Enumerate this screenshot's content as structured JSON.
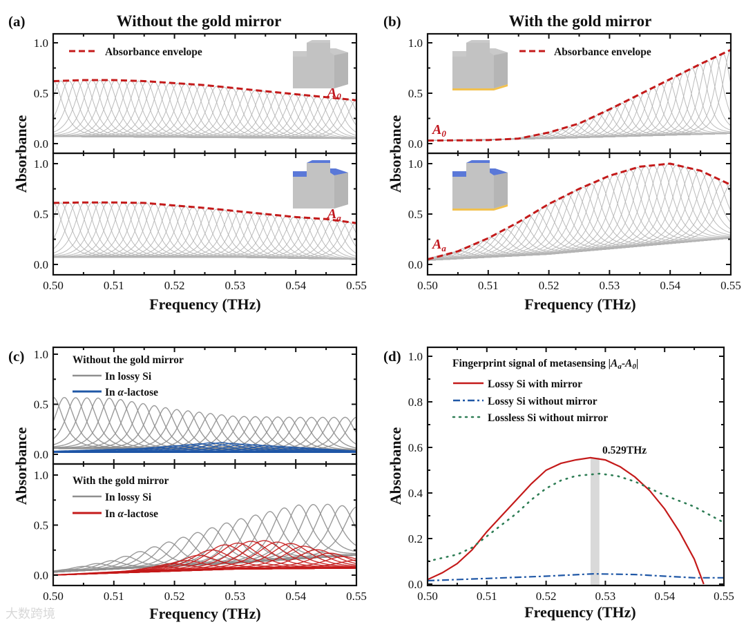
{
  "panels": {
    "a": {
      "label": "(a)",
      "title": "Without the gold mirror",
      "legend": "Absorbance envelope",
      "ylabel": "Absorbance",
      "xlabel": "Frequency (THz)",
      "tag_top": {
        "main": "A",
        "sub": "0"
      },
      "tag_bottom": {
        "main": "A",
        "sub": "a"
      }
    },
    "b": {
      "label": "(b)",
      "title": "With the gold mirror",
      "legend": "Absorbance envelope",
      "ylabel": "Absorbance",
      "xlabel": "Frequency (THz)",
      "tag_top": {
        "main": "A",
        "sub": "0"
      },
      "tag_bottom": {
        "main": "A",
        "sub": "a"
      }
    },
    "c": {
      "label": "(c)",
      "ylabel": "Absorbance",
      "xlabel": "Frequency (THz)",
      "top_heading": "Without the gold mirror",
      "top_legend": [
        "In lossy Si",
        {
          "pre": "In ",
          "greek": "α",
          "post": "-lactose"
        }
      ],
      "bottom_heading": "With the gold mirror",
      "bottom_legend": [
        "In lossy Si",
        {
          "pre": "In ",
          "greek": "α",
          "post": "-lactose"
        }
      ]
    },
    "d": {
      "label": "(d)",
      "ylabel": "Absorbance",
      "xlabel": "Frequency (THz)",
      "legend_title": {
        "pre": "Fingerprint signal of metasensing |",
        "a": "A",
        "a_sub": "a",
        "dash": "-",
        "b": "A",
        "b_sub": "0",
        "post": "|"
      },
      "annotation": "0.529THz"
    }
  },
  "watermark": "大数跨境",
  "colors": {
    "gray": "#b4b4b4",
    "gray_dark": "#8f8f8f",
    "red": "#c41a1a",
    "blue": "#1f57a6",
    "green": "#2e7d55",
    "mirror": "#f2c14e",
    "analyte": "#5a78d8"
  },
  "chart_data": [
    {
      "id": "a_top",
      "type": "line",
      "xlim": [
        0.5,
        0.55
      ],
      "ylim": [
        -0.1,
        1.08
      ],
      "x_ticks": [
        "0.50",
        "0.51",
        "0.52",
        "0.53",
        "0.54",
        "0.55"
      ],
      "y_ticks": [
        "0.0",
        "0.5",
        "1.0"
      ],
      "envelope": [
        [
          0.5,
          0.62
        ],
        [
          0.505,
          0.63
        ],
        [
          0.51,
          0.63
        ],
        [
          0.515,
          0.62
        ],
        [
          0.52,
          0.6
        ],
        [
          0.525,
          0.58
        ],
        [
          0.53,
          0.55
        ],
        [
          0.535,
          0.52
        ],
        [
          0.54,
          0.49
        ],
        [
          0.545,
          0.46
        ],
        [
          0.55,
          0.43
        ]
      ],
      "families": [
        {
          "color": "gray",
          "count": 40,
          "halfwidth": 0.0021,
          "baseline": [
            [
              0.5,
              0.07
            ],
            [
              0.55,
              0.05
            ]
          ],
          "peaks": "envelope"
        }
      ]
    },
    {
      "id": "a_bottom",
      "type": "line",
      "xlim": [
        0.5,
        0.55
      ],
      "ylim": [
        -0.1,
        1.08
      ],
      "x_ticks": [
        "0.50",
        "0.51",
        "0.52",
        "0.53",
        "0.54",
        "0.55"
      ],
      "y_ticks": [
        "0.0",
        "0.5",
        "1.0"
      ],
      "envelope": [
        [
          0.5,
          0.61
        ],
        [
          0.505,
          0.615
        ],
        [
          0.51,
          0.615
        ],
        [
          0.515,
          0.61
        ],
        [
          0.52,
          0.585
        ],
        [
          0.525,
          0.56
        ],
        [
          0.53,
          0.53
        ],
        [
          0.535,
          0.5
        ],
        [
          0.54,
          0.47
        ],
        [
          0.545,
          0.45
        ],
        [
          0.55,
          0.41
        ]
      ],
      "families": [
        {
          "color": "gray",
          "count": 40,
          "halfwidth": 0.0021,
          "baseline": [
            [
              0.5,
              0.07
            ],
            [
              0.53,
              0.07
            ],
            [
              0.55,
              0.05
            ]
          ],
          "peaks": "envelope"
        }
      ]
    },
    {
      "id": "b_top",
      "type": "line",
      "xlim": [
        0.5,
        0.55
      ],
      "ylim": [
        -0.1,
        1.08
      ],
      "x_ticks": [
        "0.50",
        "0.51",
        "0.52",
        "0.53",
        "0.54",
        "0.55"
      ],
      "y_ticks": [
        "0.0",
        "0.5",
        "1.0"
      ],
      "envelope": [
        [
          0.5,
          0.03
        ],
        [
          0.51,
          0.035
        ],
        [
          0.515,
          0.05
        ],
        [
          0.52,
          0.11
        ],
        [
          0.525,
          0.2
        ],
        [
          0.53,
          0.34
        ],
        [
          0.535,
          0.49
        ],
        [
          0.54,
          0.64
        ],
        [
          0.545,
          0.79
        ],
        [
          0.55,
          0.93
        ]
      ],
      "families": [
        {
          "color": "gray",
          "count": 40,
          "halfwidth": 0.0018,
          "baseline": [
            [
              0.5,
              0.03
            ],
            [
              0.52,
              0.05
            ],
            [
              0.55,
              0.1
            ]
          ],
          "peaks": "envelope"
        }
      ]
    },
    {
      "id": "b_bottom",
      "type": "line",
      "xlim": [
        0.5,
        0.55
      ],
      "ylim": [
        -0.1,
        1.08
      ],
      "x_ticks": [
        "0.50",
        "0.51",
        "0.52",
        "0.53",
        "0.54",
        "0.55"
      ],
      "y_ticks": [
        "0.0",
        "0.5",
        "1.0"
      ],
      "envelope": [
        [
          0.5,
          0.05
        ],
        [
          0.505,
          0.13
        ],
        [
          0.51,
          0.26
        ],
        [
          0.515,
          0.42
        ],
        [
          0.52,
          0.6
        ],
        [
          0.525,
          0.75
        ],
        [
          0.53,
          0.88
        ],
        [
          0.535,
          0.97
        ],
        [
          0.54,
          1.0
        ],
        [
          0.545,
          0.93
        ],
        [
          0.55,
          0.79
        ]
      ],
      "families": [
        {
          "color": "gray",
          "count": 40,
          "halfwidth": 0.0026,
          "baseline": [
            [
              0.5,
              0.04
            ],
            [
              0.52,
              0.1
            ],
            [
              0.55,
              0.26
            ]
          ],
          "peaks": "envelope"
        }
      ]
    },
    {
      "id": "c_top",
      "type": "line",
      "xlim": [
        0.5,
        0.55
      ],
      "ylim": [
        -0.1,
        1.08
      ],
      "x_ticks": [
        "0.50",
        "0.51",
        "0.52",
        "0.53",
        "0.54",
        "0.55"
      ],
      "y_ticks": [
        "0.0",
        "0.5",
        "1.0"
      ],
      "families": [
        {
          "color": "gray_dark",
          "count": 28,
          "halfwidth": 0.0022,
          "baseline": [
            [
              0.5,
              0.06
            ],
            [
              0.55,
              0.04
            ]
          ],
          "peaks": [
            [
              0.5,
              0.57
            ],
            [
              0.51,
              0.56
            ],
            [
              0.52,
              0.45
            ],
            [
              0.53,
              0.38
            ],
            [
              0.54,
              0.37
            ],
            [
              0.55,
              0.37
            ]
          ]
        },
        {
          "color": "blue",
          "count": 28,
          "halfwidth": 0.004,
          "baseline": [
            [
              0.5,
              0.02
            ],
            [
              0.55,
              0.02
            ]
          ],
          "peaks": [
            [
              0.5,
              0.03
            ],
            [
              0.515,
              0.06
            ],
            [
              0.527,
              0.12
            ],
            [
              0.54,
              0.07
            ],
            [
              0.55,
              0.03
            ]
          ]
        }
      ]
    },
    {
      "id": "c_bottom",
      "type": "line",
      "xlim": [
        0.5,
        0.55
      ],
      "ylim": [
        -0.1,
        1.08
      ],
      "x_ticks": [
        "0.50",
        "0.51",
        "0.52",
        "0.53",
        "0.54",
        "0.55"
      ],
      "y_ticks": [
        "0.0",
        "0.5",
        "1.0"
      ],
      "families": [
        {
          "color": "gray_dark",
          "count": 22,
          "halfwidth": 0.0028,
          "baseline": [
            [
              0.5,
              0.03
            ],
            [
              0.53,
              0.12
            ],
            [
              0.55,
              0.2
            ]
          ],
          "peaks": [
            [
              0.5,
              0.03
            ],
            [
              0.51,
              0.15
            ],
            [
              0.52,
              0.35
            ],
            [
              0.53,
              0.55
            ],
            [
              0.54,
              0.7
            ],
            [
              0.545,
              0.71
            ],
            [
              0.55,
              0.68
            ]
          ]
        },
        {
          "color": "red",
          "count": 24,
          "halfwidth": 0.0045,
          "baseline": [
            [
              0.5,
              0.0
            ],
            [
              0.53,
              0.06
            ],
            [
              0.55,
              0.07
            ]
          ],
          "peaks": [
            [
              0.5,
              0.0
            ],
            [
              0.515,
              0.05
            ],
            [
              0.522,
              0.15
            ],
            [
              0.528,
              0.3
            ],
            [
              0.534,
              0.35
            ],
            [
              0.54,
              0.31
            ],
            [
              0.545,
              0.23
            ],
            [
              0.55,
              0.15
            ]
          ]
        }
      ]
    },
    {
      "id": "d",
      "type": "line",
      "title": "Fingerprint signal of metasensing |Aa-A0|",
      "xlabel": "Frequency (THz)",
      "ylabel": "Absorbance",
      "xlim": [
        0.5,
        0.55
      ],
      "ylim": [
        0.0,
        1.04
      ],
      "x_ticks": [
        "0.50",
        "0.51",
        "0.52",
        "0.53",
        "0.54",
        "0.55"
      ],
      "y_ticks": [
        "0.0",
        "0.2",
        "0.4",
        "0.6",
        "0.8",
        "1.0"
      ],
      "highlight_band": [
        0.5275,
        0.529
      ],
      "series": [
        {
          "name": "Lossy Si with mirror",
          "color": "red",
          "style": "solid",
          "points": [
            [
              0.5,
              0.02
            ],
            [
              0.5025,
              0.05
            ],
            [
              0.505,
              0.09
            ],
            [
              0.5075,
              0.15
            ],
            [
              0.51,
              0.23
            ],
            [
              0.5125,
              0.3
            ],
            [
              0.515,
              0.37
            ],
            [
              0.5175,
              0.44
            ],
            [
              0.52,
              0.5
            ],
            [
              0.5225,
              0.53
            ],
            [
              0.525,
              0.545
            ],
            [
              0.5275,
              0.555
            ],
            [
              0.53,
              0.545
            ],
            [
              0.5325,
              0.515
            ],
            [
              0.535,
              0.47
            ],
            [
              0.5375,
              0.41
            ],
            [
              0.54,
              0.33
            ],
            [
              0.5425,
              0.23
            ],
            [
              0.545,
              0.11
            ],
            [
              0.5466,
              0.0
            ]
          ]
        },
        {
          "name": "Lossy Si without mirror",
          "color": "blue",
          "style": "dashdot",
          "points": [
            [
              0.5,
              0.015
            ],
            [
              0.51,
              0.025
            ],
            [
              0.52,
              0.035
            ],
            [
              0.528,
              0.045
            ],
            [
              0.535,
              0.042
            ],
            [
              0.54,
              0.035
            ],
            [
              0.545,
              0.028
            ],
            [
              0.55,
              0.028
            ]
          ]
        },
        {
          "name": "Lossless Si without mirror",
          "color": "green",
          "style": "dotted",
          "points": [
            [
              0.5,
              0.1
            ],
            [
              0.505,
              0.13
            ],
            [
              0.5075,
              0.16
            ],
            [
              0.51,
              0.21
            ],
            [
              0.5125,
              0.26
            ],
            [
              0.515,
              0.31
            ],
            [
              0.5175,
              0.37
            ],
            [
              0.52,
              0.42
            ],
            [
              0.5225,
              0.455
            ],
            [
              0.525,
              0.475
            ],
            [
              0.529,
              0.485
            ],
            [
              0.532,
              0.475
            ],
            [
              0.535,
              0.45
            ],
            [
              0.5375,
              0.42
            ],
            [
              0.54,
              0.39
            ],
            [
              0.545,
              0.34
            ],
            [
              0.55,
              0.27
            ]
          ]
        }
      ]
    }
  ]
}
